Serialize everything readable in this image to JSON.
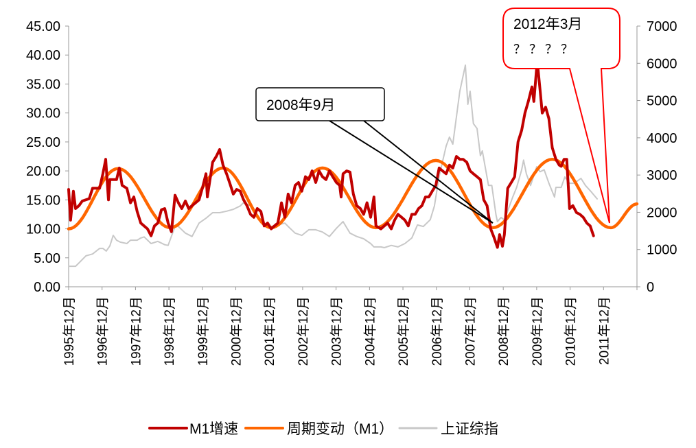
{
  "chart_data": {
    "type": "line",
    "x_unit": "months since 1995年12月",
    "x_range": [
      0,
      204
    ],
    "y_left": {
      "range": [
        0,
        45
      ],
      "ticks": [
        "0.00",
        "5.00",
        "10.00",
        "15.00",
        "20.00",
        "25.00",
        "30.00",
        "35.00",
        "40.00",
        "45.00"
      ]
    },
    "y_right": {
      "range": [
        0,
        7000
      ],
      "ticks": [
        "0",
        "1000",
        "2000",
        "3000",
        "4000",
        "5000",
        "6000",
        "7000"
      ]
    },
    "x_ticks": [
      "1995年12月",
      "1996年12月",
      "1997年12月",
      "1998年12月",
      "1999年12月",
      "2000年12月",
      "2001年12月",
      "2002年12月",
      "2003年12月",
      "2004年12月",
      "2005年12月",
      "2006年12月",
      "2007年12月",
      "2008年12月",
      "2009年12月",
      "2010年12月",
      "2011年12月"
    ],
    "legend": {
      "placement": "bottom"
    },
    "series": [
      {
        "name": "M1增速",
        "axis": "left",
        "color": "#C00000",
        "points": [
          [
            0,
            16.8
          ],
          [
            0.7,
            11.5
          ],
          [
            1.7,
            16.5
          ],
          [
            2.5,
            13.5
          ],
          [
            3.7,
            14
          ],
          [
            4.9,
            14.8
          ],
          [
            7.4,
            15.2
          ],
          [
            8.6,
            17
          ],
          [
            11.1,
            17
          ],
          [
            12.3,
            19.5
          ],
          [
            13.3,
            22
          ],
          [
            14.3,
            15
          ],
          [
            14.8,
            18.5
          ],
          [
            17.2,
            18.5
          ],
          [
            18.2,
            20.5
          ],
          [
            19.2,
            17.5
          ],
          [
            20.9,
            17
          ],
          [
            22.2,
            14.5
          ],
          [
            23.4,
            15.5
          ],
          [
            24.6,
            13
          ],
          [
            25.9,
            11
          ],
          [
            28.3,
            10
          ],
          [
            29.6,
            8.8
          ],
          [
            30.8,
            10.5
          ],
          [
            32,
            11
          ],
          [
            33.3,
            13.3
          ],
          [
            34.5,
            13.5
          ],
          [
            35.7,
            11
          ],
          [
            36.9,
            9.5
          ],
          [
            38.2,
            15.8
          ],
          [
            39.4,
            14.5
          ],
          [
            40.6,
            13.5
          ],
          [
            41.9,
            14.8
          ],
          [
            43.1,
            13.5
          ],
          [
            44.3,
            14
          ],
          [
            46.8,
            15
          ],
          [
            48,
            17
          ],
          [
            49.3,
            19.5
          ],
          [
            49.8,
            15.5
          ],
          [
            51.7,
            21.5
          ],
          [
            53,
            22.5
          ],
          [
            54.2,
            23.7
          ],
          [
            55.4,
            21
          ],
          [
            56.7,
            19.5
          ],
          [
            57.9,
            17.8
          ],
          [
            59.1,
            16
          ],
          [
            60.3,
            16.8
          ],
          [
            61.6,
            16.5
          ],
          [
            62.8,
            15
          ],
          [
            64,
            14
          ],
          [
            65.3,
            12.5
          ],
          [
            66.5,
            12
          ],
          [
            67.7,
            13.5
          ],
          [
            69,
            13
          ],
          [
            70.2,
            10.5
          ],
          [
            71.4,
            11
          ],
          [
            72.7,
            10
          ],
          [
            73.9,
            10.5
          ],
          [
            75.1,
            11
          ],
          [
            76.4,
            14.5
          ],
          [
            77.6,
            12
          ],
          [
            78.8,
            16
          ],
          [
            80,
            14.5
          ],
          [
            81.3,
            17.5
          ],
          [
            82.5,
            18
          ],
          [
            83.7,
            16.5
          ],
          [
            85,
            19
          ],
          [
            86.2,
            18.5
          ],
          [
            87.4,
            20
          ],
          [
            88.7,
            18
          ],
          [
            89.9,
            20
          ],
          [
            91.1,
            19
          ],
          [
            92.4,
            18.5
          ],
          [
            93.6,
            20
          ],
          [
            94.8,
            19
          ],
          [
            96.1,
            18
          ],
          [
            97.3,
            17.5
          ],
          [
            97.8,
            15.5
          ],
          [
            98.5,
            19.5
          ],
          [
            99.8,
            20
          ],
          [
            101,
            19.8
          ],
          [
            102.2,
            16
          ],
          [
            103.4,
            14
          ],
          [
            104.7,
            13.5
          ],
          [
            105.9,
            12.5
          ],
          [
            107.1,
            14.5
          ],
          [
            108.4,
            12
          ],
          [
            109.6,
            15.5
          ],
          [
            110.3,
            10.5
          ],
          [
            112.1,
            10
          ],
          [
            113.3,
            10.5
          ],
          [
            114.5,
            11
          ],
          [
            115.8,
            10
          ],
          [
            117,
            11.5
          ],
          [
            118.2,
            12.5
          ],
          [
            119.5,
            12
          ],
          [
            120.7,
            11.5
          ],
          [
            121.9,
            10.5
          ],
          [
            123.2,
            12.5
          ],
          [
            124.4,
            12.5
          ],
          [
            125.6,
            13.5
          ],
          [
            126.8,
            14
          ],
          [
            128.1,
            15.5
          ],
          [
            129.3,
            15.5
          ],
          [
            130.5,
            16.5
          ],
          [
            131.8,
            17.5
          ],
          [
            133,
            20.5
          ],
          [
            134.2,
            20
          ],
          [
            135.5,
            19.5
          ],
          [
            136.7,
            21
          ],
          [
            137.9,
            20.5
          ],
          [
            139.2,
            22.5
          ],
          [
            140.4,
            22
          ],
          [
            141.6,
            22
          ],
          [
            142.9,
            21.5
          ],
          [
            144.1,
            20
          ],
          [
            145.3,
            19.5
          ],
          [
            146.6,
            19
          ],
          [
            147.8,
            18.5
          ],
          [
            149,
            15
          ],
          [
            150.2,
            14
          ],
          [
            151.5,
            10
          ],
          [
            152.7,
            8.5
          ],
          [
            153.9,
            6.8
          ],
          [
            154.7,
            9
          ],
          [
            155.7,
            7
          ],
          [
            156.4,
            9
          ],
          [
            157.6,
            17
          ],
          [
            158.9,
            18
          ],
          [
            160.1,
            19
          ],
          [
            161.3,
            25
          ],
          [
            162.6,
            27
          ],
          [
            163.8,
            30
          ],
          [
            165,
            32
          ],
          [
            166.3,
            34.5
          ],
          [
            167,
            32
          ],
          [
            168.2,
            39
          ],
          [
            169.2,
            34
          ],
          [
            170,
            30
          ],
          [
            171.2,
            31
          ],
          [
            172.4,
            29
          ],
          [
            173.6,
            24
          ],
          [
            174.9,
            22
          ],
          [
            176.1,
            21
          ],
          [
            176.8,
            20.8
          ],
          [
            177.8,
            22
          ],
          [
            178.8,
            22
          ],
          [
            179.8,
            13.5
          ],
          [
            181,
            14
          ],
          [
            182.3,
            12.8
          ],
          [
            183.5,
            12.5
          ],
          [
            184.7,
            12
          ],
          [
            186,
            11
          ],
          [
            187.2,
            10.5
          ],
          [
            188.4,
            8.8
          ]
        ]
      },
      {
        "name": "周期变动（M1）",
        "axis": "left",
        "color": "#FF6600",
        "points": [
          [
            0,
            10
          ],
          [
            17.7,
            20.4
          ],
          [
            36.5,
            10.2
          ],
          [
            55.4,
            20.5
          ],
          [
            72.7,
            10.2
          ],
          [
            91.1,
            20.5
          ],
          [
            110.3,
            10.2
          ],
          [
            131.8,
            21.8
          ],
          [
            152.2,
            10.2
          ],
          [
            173.6,
            22
          ],
          [
            194.6,
            10.2
          ],
          [
            204,
            14.3
          ]
        ]
      },
      {
        "name": "上证综指",
        "axis": "right",
        "color": "#C8C8C8",
        "points": [
          [
            0,
            550
          ],
          [
            2.5,
            550
          ],
          [
            3.7,
            640
          ],
          [
            6.2,
            830
          ],
          [
            8.6,
            880
          ],
          [
            11.1,
            1030
          ],
          [
            12.3,
            1030
          ],
          [
            13.5,
            960
          ],
          [
            14.8,
            1100
          ],
          [
            16,
            1380
          ],
          [
            17.2,
            1250
          ],
          [
            18.5,
            1200
          ],
          [
            20.9,
            1160
          ],
          [
            22.2,
            1250
          ],
          [
            24.6,
            1250
          ],
          [
            25.9,
            1310
          ],
          [
            27.1,
            1340
          ],
          [
            29.6,
            1160
          ],
          [
            32,
            1220
          ],
          [
            34.5,
            1130
          ],
          [
            35.7,
            1110
          ],
          [
            38.2,
            1620
          ],
          [
            39.4,
            1620
          ],
          [
            41.9,
            1440
          ],
          [
            44.3,
            1350
          ],
          [
            46.8,
            1710
          ],
          [
            49.3,
            1840
          ],
          [
            51.7,
            1990
          ],
          [
            54.2,
            1990
          ],
          [
            56.7,
            2030
          ],
          [
            59.1,
            2080
          ],
          [
            61.6,
            2170
          ],
          [
            62.8,
            2260
          ],
          [
            65.3,
            2170
          ],
          [
            69,
            1750
          ],
          [
            72.7,
            1620
          ],
          [
            75.1,
            1660
          ],
          [
            77.6,
            1710
          ],
          [
            78.8,
            1620
          ],
          [
            81.3,
            1440
          ],
          [
            83.7,
            1380
          ],
          [
            86.2,
            1530
          ],
          [
            88.7,
            1530
          ],
          [
            91.1,
            1470
          ],
          [
            93.6,
            1350
          ],
          [
            96.1,
            1570
          ],
          [
            98.5,
            1750
          ],
          [
            101,
            1440
          ],
          [
            103.4,
            1350
          ],
          [
            105.9,
            1290
          ],
          [
            108.4,
            1160
          ],
          [
            109.6,
            1070
          ],
          [
            112.1,
            1070
          ],
          [
            113.3,
            1050
          ],
          [
            115.8,
            1110
          ],
          [
            118.2,
            1070
          ],
          [
            120.7,
            1160
          ],
          [
            123.2,
            1310
          ],
          [
            125.2,
            1660
          ],
          [
            127.3,
            1620
          ],
          [
            129.8,
            1800
          ],
          [
            131.3,
            2170
          ],
          [
            133,
            2970
          ],
          [
            135.5,
            3780
          ],
          [
            136.7,
            4020
          ],
          [
            137.9,
            3830
          ],
          [
            140.4,
            5250
          ],
          [
            142.4,
            5950
          ],
          [
            143.3,
            4900
          ],
          [
            144.1,
            5250
          ],
          [
            145.3,
            4380
          ],
          [
            146.6,
            4250
          ],
          [
            147.8,
            3520
          ],
          [
            148.5,
            3650
          ],
          [
            150.7,
            2720
          ],
          [
            151.9,
            2720
          ],
          [
            153.4,
            1930
          ],
          [
            153.9,
            1750
          ],
          [
            155.2,
            1860
          ],
          [
            156.4,
            1800
          ],
          [
            157.6,
            2040
          ],
          [
            159.4,
            2410
          ],
          [
            160.8,
            2670
          ],
          [
            162.6,
            3140
          ],
          [
            163.3,
            3400
          ],
          [
            164.3,
            3030
          ],
          [
            165.8,
            2720
          ],
          [
            168,
            3220
          ],
          [
            169.2,
            3090
          ],
          [
            170.7,
            3140
          ],
          [
            172.4,
            2780
          ],
          [
            174.4,
            2410
          ],
          [
            174.9,
            2670
          ],
          [
            176.8,
            2670
          ],
          [
            178.1,
            2950
          ],
          [
            179.8,
            2780
          ],
          [
            181.5,
            2780
          ],
          [
            183.9,
            2910
          ],
          [
            185.5,
            2720
          ],
          [
            187.7,
            2540
          ],
          [
            189.7,
            2360
          ]
        ]
      }
    ],
    "annotations": [
      {
        "text": "2008年9月",
        "target_month": 153,
        "target_value": 10.6,
        "style": "black-callout"
      },
      {
        "text": "2012年3月",
        "subtext": "？ ？ ？ ？",
        "target_month": 195,
        "target_value": 10.2,
        "style": "red-callout"
      }
    ]
  }
}
